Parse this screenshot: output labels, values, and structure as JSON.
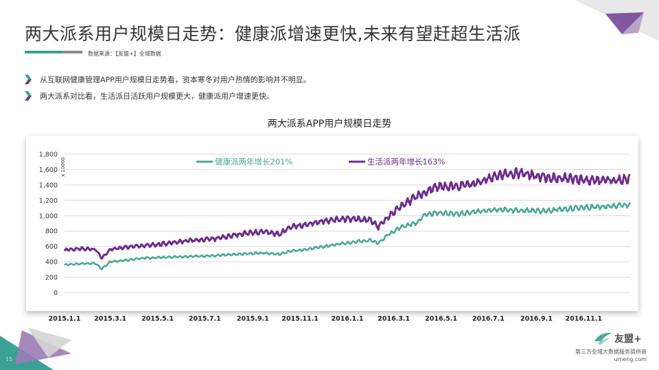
{
  "header": {
    "title": "两大派系用户规模日走势：健康派增速更快,未来有望赶超生活派",
    "source": "数据来源：【友盟+】全域数据"
  },
  "bullets": [
    "从互联网健康管理APP用户规模日走势看，资本寒冬对用户热情的影响并不明显。",
    "两大派系对比看，生活派日活跃用户规模更大，健康派用户增速更快。"
  ],
  "brand": {
    "logo_text": "友盟+",
    "tagline_line1": "第三方全域大数据服务提供商",
    "tagline_line2": "umeng.com",
    "page_number": "15"
  },
  "colors": {
    "health": "#4ba89a",
    "life": "#6b2d8c",
    "accent_teal": "#3aa197",
    "accent_purple": "#6b3d8f",
    "grid": "#d9d9d9"
  },
  "chart_data": {
    "type": "line",
    "title": "两大派系APP用户规模日走势",
    "unit_label": "x 10000",
    "ylim": [
      0,
      1800
    ],
    "yticks": [
      0,
      200,
      400,
      600,
      800,
      1000,
      1200,
      1400,
      1600,
      1800
    ],
    "ytick_labels": [
      "0",
      "200",
      "400",
      "600",
      "800",
      "1,000",
      "1,200",
      "1,400",
      "1,600",
      "1,800"
    ],
    "xlim": [
      "2015-01-01",
      "2016-12-31"
    ],
    "xticks": [
      "2015-01-01",
      "2015-03-01",
      "2015-05-01",
      "2015-07-01",
      "2015-09-01",
      "2015-11-01",
      "2016-01-01",
      "2016-03-01",
      "2016-05-01",
      "2016-07-01",
      "2016-09-01",
      "2016-11-01"
    ],
    "xtick_labels": [
      "2015.1.1",
      "2015.3.1",
      "2015.5.1",
      "2015.7.1",
      "2015.9.1",
      "2015.11.1",
      "2016.1.1",
      "2016.3.1",
      "2016.5.1",
      "2016.7.1",
      "2016.9.1",
      "2016.11.1"
    ],
    "grid": true,
    "legend_position": "top",
    "series": [
      {
        "name": "健康派两年增长201%",
        "color": "#4ba89a",
        "points": [
          [
            "2015-01-01",
            360
          ],
          [
            "2015-01-20",
            375
          ],
          [
            "2015-02-10",
            380
          ],
          [
            "2015-02-18",
            310
          ],
          [
            "2015-03-01",
            400
          ],
          [
            "2015-03-20",
            420
          ],
          [
            "2015-04-15",
            450
          ],
          [
            "2015-05-15",
            460
          ],
          [
            "2015-06-15",
            470
          ],
          [
            "2015-07-15",
            480
          ],
          [
            "2015-08-15",
            500
          ],
          [
            "2015-09-15",
            515
          ],
          [
            "2015-10-05",
            500
          ],
          [
            "2015-10-20",
            540
          ],
          [
            "2015-11-15",
            570
          ],
          [
            "2015-12-15",
            620
          ],
          [
            "2016-01-10",
            660
          ],
          [
            "2016-02-01",
            680
          ],
          [
            "2016-02-10",
            640
          ],
          [
            "2016-02-22",
            750
          ],
          [
            "2016-03-10",
            850
          ],
          [
            "2016-03-31",
            910
          ],
          [
            "2016-04-10",
            1010
          ],
          [
            "2016-04-25",
            1040
          ],
          [
            "2016-05-20",
            1020
          ],
          [
            "2016-06-15",
            1050
          ],
          [
            "2016-07-10",
            1080
          ],
          [
            "2016-08-10",
            1070
          ],
          [
            "2016-09-10",
            1060
          ],
          [
            "2016-10-10",
            1090
          ],
          [
            "2016-11-10",
            1110
          ],
          [
            "2016-12-10",
            1130
          ],
          [
            "2016-12-31",
            1140
          ]
        ]
      },
      {
        "name": "生活派两年增长163%",
        "color": "#6b2d8c",
        "points": [
          [
            "2015-01-01",
            550
          ],
          [
            "2015-01-20",
            570
          ],
          [
            "2015-02-10",
            560
          ],
          [
            "2015-02-18",
            450
          ],
          [
            "2015-03-01",
            560
          ],
          [
            "2015-03-20",
            590
          ],
          [
            "2015-04-15",
            610
          ],
          [
            "2015-05-15",
            640
          ],
          [
            "2015-06-15",
            680
          ],
          [
            "2015-07-15",
            700
          ],
          [
            "2015-08-15",
            760
          ],
          [
            "2015-09-15",
            790
          ],
          [
            "2015-10-05",
            760
          ],
          [
            "2015-10-20",
            850
          ],
          [
            "2015-11-15",
            900
          ],
          [
            "2015-12-15",
            950
          ],
          [
            "2016-01-10",
            960
          ],
          [
            "2016-02-01",
            940
          ],
          [
            "2016-02-10",
            850
          ],
          [
            "2016-02-22",
            980
          ],
          [
            "2016-03-10",
            1120
          ],
          [
            "2016-03-31",
            1250
          ],
          [
            "2016-04-10",
            1300
          ],
          [
            "2016-04-25",
            1370
          ],
          [
            "2016-05-20",
            1380
          ],
          [
            "2016-06-15",
            1420
          ],
          [
            "2016-07-10",
            1510
          ],
          [
            "2016-08-10",
            1560
          ],
          [
            "2016-09-10",
            1500
          ],
          [
            "2016-10-10",
            1490
          ],
          [
            "2016-11-10",
            1450
          ],
          [
            "2016-12-10",
            1460
          ],
          [
            "2016-12-31",
            1480
          ]
        ]
      }
    ]
  }
}
